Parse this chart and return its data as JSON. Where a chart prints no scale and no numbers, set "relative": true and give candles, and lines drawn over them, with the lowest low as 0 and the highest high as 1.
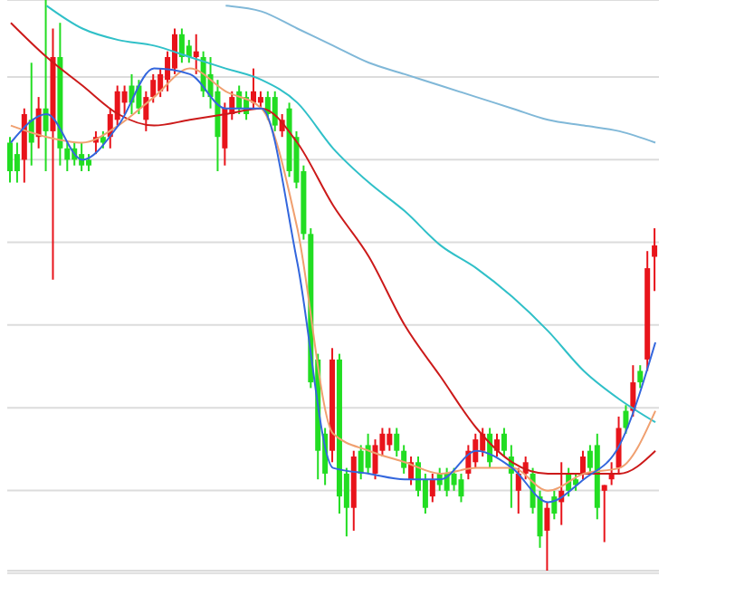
{
  "chart_data": {
    "type": "candlestick",
    "relative": true,
    "grid": "y",
    "categories": [
      null,
      null,
      null,
      null,
      null,
      null,
      null,
      null,
      null,
      null,
      null,
      null,
      null,
      null,
      null,
      null,
      null,
      null,
      null,
      null,
      null,
      null,
      null,
      null,
      null,
      null,
      null,
      null,
      null,
      null,
      null,
      null,
      null,
      null,
      null,
      null,
      null,
      null,
      null,
      null,
      null,
      null,
      null,
      null,
      null,
      null,
      null,
      null,
      null,
      null,
      null,
      null,
      null,
      null,
      null,
      null,
      null,
      null,
      null,
      null,
      null,
      null,
      null,
      null,
      null,
      null,
      null,
      null,
      null,
      null,
      null,
      null,
      null,
      null,
      null,
      null,
      null,
      null,
      null,
      null,
      null,
      null,
      null,
      null,
      null,
      null,
      null,
      null,
      null,
      null,
      null
    ],
    "ohlc": [
      [
        0.75,
        0.76,
        0.68,
        0.7
      ],
      [
        0.73,
        0.75,
        0.68,
        0.7
      ],
      [
        0.72,
        0.81,
        0.68,
        0.8
      ],
      [
        0.79,
        0.89,
        0.71,
        0.75
      ],
      [
        0.76,
        0.83,
        0.74,
        0.81
      ],
      [
        0.81,
        1,
        0.7,
        0.77
      ],
      [
        0.77,
        0.95,
        0.51,
        0.9
      ],
      [
        0.9,
        0.96,
        0.71,
        0.74
      ],
      [
        0.74,
        0.75,
        0.7,
        0.72
      ],
      [
        0.74,
        0.75,
        0.71,
        0.72
      ],
      [
        0.73,
        0.75,
        0.7,
        0.71
      ],
      [
        0.72,
        0.73,
        0.7,
        0.71
      ],
      [
        0.75,
        0.77,
        0.73,
        0.76
      ],
      [
        0.76,
        0.77,
        0.74,
        0.75
      ],
      [
        0.76,
        0.81,
        0.74,
        0.8
      ],
      [
        0.79,
        0.85,
        0.78,
        0.84
      ],
      [
        0.82,
        0.85,
        0.8,
        0.84
      ],
      [
        0.85,
        0.87,
        0.8,
        0.82
      ],
      [
        0.85,
        0.86,
        0.8,
        0.81
      ],
      [
        0.79,
        0.84,
        0.77,
        0.83
      ],
      [
        0.83,
        0.87,
        0.82,
        0.86
      ],
      [
        0.84,
        0.88,
        0.83,
        0.87
      ],
      [
        0.86,
        0.91,
        0.84,
        0.9
      ],
      [
        0.88,
        0.95,
        0.87,
        0.94
      ],
      [
        0.94,
        0.95,
        0.89,
        0.9
      ],
      [
        0.92,
        0.93,
        0.89,
        0.9
      ],
      [
        0.9,
        0.94,
        0.87,
        0.91
      ],
      [
        0.9,
        0.91,
        0.83,
        0.84
      ],
      [
        0.87,
        0.9,
        0.81,
        0.83
      ],
      [
        0.84,
        0.86,
        0.7,
        0.76
      ],
      [
        0.74,
        0.82,
        0.71,
        0.81
      ],
      [
        0.8,
        0.84,
        0.79,
        0.83
      ],
      [
        0.84,
        0.85,
        0.8,
        0.81
      ],
      [
        0.83,
        0.84,
        0.79,
        0.8
      ],
      [
        0.82,
        0.88,
        0.81,
        0.84
      ],
      [
        0.82,
        0.84,
        0.81,
        0.83
      ],
      [
        0.83,
        0.84,
        0.79,
        0.8
      ],
      [
        0.83,
        0.84,
        0.77,
        0.78
      ],
      [
        0.77,
        0.8,
        0.76,
        0.79
      ],
      [
        0.81,
        0.82,
        0.69,
        0.7
      ],
      [
        0.76,
        0.77,
        0.67,
        0.68
      ],
      [
        0.7,
        0.71,
        0.58,
        0.59
      ],
      [
        0.59,
        0.6,
        0.32,
        0.33
      ],
      [
        0.37,
        0.38,
        0.16,
        0.21
      ],
      [
        0.24,
        0.25,
        0.15,
        0.17
      ],
      [
        0.21,
        0.39,
        0.19,
        0.37
      ],
      [
        0.37,
        0.38,
        0.1,
        0.13
      ],
      [
        0.17,
        0.18,
        0.06,
        0.11
      ],
      [
        0.11,
        0.21,
        0.07,
        0.2
      ],
      [
        0.21,
        0.22,
        0.16,
        0.17
      ],
      [
        0.22,
        0.24,
        0.17,
        0.18
      ],
      [
        0.17,
        0.23,
        0.16,
        0.22
      ],
      [
        0.21,
        0.25,
        0.2,
        0.24
      ],
      [
        0.22,
        0.25,
        0.21,
        0.24
      ],
      [
        0.24,
        0.25,
        0.2,
        0.21
      ],
      [
        0.21,
        0.22,
        0.17,
        0.18
      ],
      [
        0.16,
        0.2,
        0.15,
        0.19
      ],
      [
        0.19,
        0.2,
        0.13,
        0.14
      ],
      [
        0.16,
        0.17,
        0.1,
        0.11
      ],
      [
        0.13,
        0.17,
        0.12,
        0.16
      ],
      [
        0.17,
        0.18,
        0.14,
        0.15
      ],
      [
        0.17,
        0.18,
        0.13,
        0.14
      ],
      [
        0.17,
        0.18,
        0.14,
        0.15
      ],
      [
        0.16,
        0.17,
        0.12,
        0.13
      ],
      [
        0.17,
        0.22,
        0.16,
        0.21
      ],
      [
        0.19,
        0.24,
        0.18,
        0.23
      ],
      [
        0.21,
        0.25,
        0.2,
        0.24
      ],
      [
        0.24,
        0.25,
        0.18,
        0.19
      ],
      [
        0.21,
        0.24,
        0.2,
        0.23
      ],
      [
        0.24,
        0.25,
        0.2,
        0.21
      ],
      [
        0.2,
        0.22,
        0.11,
        0.17
      ],
      [
        0.14,
        0.18,
        0.1,
        0.17
      ],
      [
        0.17,
        0.2,
        0.16,
        0.19
      ],
      [
        0.17,
        0.18,
        0.1,
        0.11
      ],
      [
        0.13,
        0.14,
        0.04,
        0.06
      ],
      [
        0.07,
        0.12,
        0,
        0.11
      ],
      [
        0.13,
        0.14,
        0.09,
        0.1
      ],
      [
        0.12,
        0.19,
        0.08,
        0.14
      ],
      [
        0.17,
        0.18,
        0.13,
        0.14
      ],
      [
        0.16,
        0.17,
        0.14,
        0.15
      ],
      [
        0.17,
        0.21,
        0.16,
        0.2
      ],
      [
        0.21,
        0.22,
        0.17,
        0.18
      ],
      [
        0.22,
        0.24,
        0.09,
        0.11
      ],
      [
        0.14,
        0.15,
        0.05,
        0.15
      ],
      [
        0.16,
        0.19,
        0.15,
        0.17
      ],
      [
        0.18,
        0.27,
        0.17,
        0.25
      ],
      [
        0.28,
        0.29,
        0.24,
        0.25
      ],
      [
        0.28,
        0.36,
        0.27,
        0.33
      ],
      [
        0.35,
        0.36,
        0.32,
        0.33
      ],
      [
        0.37,
        0.56,
        0.35,
        0.53
      ],
      [
        0.55,
        0.6,
        0.49,
        0.57
      ]
    ],
    "colors": [
      "#22dd22",
      "#22dd22",
      "#e8141b",
      "#22dd22",
      "#e8141b",
      "#22dd22",
      "#e8141b",
      "#22dd22",
      "#22dd22",
      "#22dd22",
      "#22dd22",
      "#22dd22",
      "#e8141b",
      "#22dd22",
      "#e8141b",
      "#e8141b",
      "#e8141b",
      "#22dd22",
      "#22dd22",
      "#e8141b",
      "#e8141b",
      "#e8141b",
      "#e8141b",
      "#e8141b",
      "#22dd22",
      "#22dd22",
      "#e8141b",
      "#22dd22",
      "#22dd22",
      "#22dd22",
      "#e8141b",
      "#e8141b",
      "#22dd22",
      "#22dd22",
      "#e8141b",
      "#e8141b",
      "#22dd22",
      "#22dd22",
      "#e8141b",
      "#22dd22",
      "#22dd22",
      "#22dd22",
      "#22dd22",
      "#22dd22",
      "#22dd22",
      "#e8141b",
      "#22dd22",
      "#22dd22",
      "#e8141b",
      "#22dd22",
      "#22dd22",
      "#e8141b",
      "#e8141b",
      "#e8141b",
      "#22dd22",
      "#22dd22",
      "#e8141b",
      "#22dd22",
      "#22dd22",
      "#e8141b",
      "#22dd22",
      "#22dd22",
      "#22dd22",
      "#22dd22",
      "#e8141b",
      "#e8141b",
      "#e8141b",
      "#22dd22",
      "#e8141b",
      "#22dd22",
      "#22dd22",
      "#e8141b",
      "#e8141b",
      "#22dd22",
      "#22dd22",
      "#e8141b",
      "#22dd22",
      "#e8141b",
      "#22dd22",
      "#22dd22",
      "#e8141b",
      "#22dd22",
      "#22dd22",
      "#e8141b",
      "#e8141b",
      "#e8141b",
      "#22dd22",
      "#e8141b",
      "#22dd22",
      "#e8141b",
      "#e8141b"
    ],
    "series": [
      {
        "type": "line",
        "color": "#80b8d8",
        "values": [
          null,
          null,
          null,
          null,
          null,
          null,
          null,
          null,
          null,
          null,
          null,
          null,
          null,
          null,
          null,
          null,
          null,
          null,
          null,
          null,
          null,
          null,
          null,
          null,
          null,
          null,
          null,
          null,
          null,
          null,
          0.99,
          null,
          null,
          null,
          null,
          0.98,
          null,
          null,
          null,
          null,
          0.95,
          null,
          null,
          null,
          null,
          0.92,
          null,
          null,
          null,
          null,
          0.89,
          null,
          null,
          null,
          null,
          0.87,
          null,
          null,
          null,
          null,
          0.85,
          null,
          null,
          null,
          null,
          0.83,
          null,
          null,
          null,
          null,
          0.81,
          null,
          null,
          null,
          null,
          0.79,
          null,
          null,
          null,
          null,
          0.78,
          null,
          null,
          null,
          null,
          0.77,
          null,
          null,
          null,
          null,
          0.75
        ]
      },
      {
        "type": "line",
        "color": "#30c0c8",
        "values": [
          null,
          null,
          null,
          null,
          null,
          0.99,
          null,
          null,
          null,
          null,
          0.95,
          null,
          null,
          null,
          null,
          0.93,
          null,
          null,
          null,
          null,
          0.92,
          null,
          null,
          null,
          null,
          0.9,
          null,
          null,
          null,
          null,
          0.88,
          null,
          null,
          null,
          null,
          0.86,
          null,
          null,
          null,
          null,
          0.82,
          null,
          null,
          null,
          null,
          0.74,
          null,
          null,
          null,
          null,
          0.68,
          null,
          null,
          null,
          null,
          0.63,
          null,
          null,
          null,
          null,
          0.57,
          null,
          null,
          null,
          null,
          0.53,
          null,
          null,
          null,
          null,
          0.48,
          null,
          null,
          null,
          null,
          0.42,
          null,
          null,
          null,
          null,
          0.35,
          null,
          null,
          null,
          null,
          0.3,
          null,
          null,
          null,
          null,
          0.26
        ]
      },
      {
        "type": "line",
        "color": "#cc1a1a",
        "values": [
          0.96,
          null,
          null,
          null,
          null,
          0.9,
          null,
          null,
          null,
          null,
          0.85,
          null,
          null,
          null,
          null,
          0.8,
          null,
          null,
          null,
          null,
          0.78,
          null,
          null,
          null,
          null,
          0.79,
          null,
          null,
          null,
          null,
          0.8,
          null,
          null,
          null,
          null,
          0.81,
          null,
          null,
          null,
          null,
          0.75,
          null,
          null,
          null,
          null,
          0.64,
          null,
          null,
          null,
          null,
          0.55,
          null,
          null,
          null,
          null,
          0.43,
          null,
          null,
          null,
          null,
          0.34,
          null,
          null,
          null,
          null,
          0.25,
          null,
          null,
          null,
          null,
          0.19,
          null,
          null,
          null,
          null,
          0.17,
          null,
          null,
          null,
          null,
          0.17,
          null,
          null,
          null,
          null,
          0.17,
          null,
          null,
          null,
          null,
          0.21
        ]
      },
      {
        "type": "line",
        "color": "#f0a070",
        "values": [
          0.78,
          null,
          null,
          null,
          null,
          0.76,
          null,
          null,
          null,
          null,
          0.75,
          null,
          null,
          null,
          null,
          0.78,
          null,
          null,
          null,
          null,
          0.83,
          null,
          null,
          null,
          null,
          0.88,
          null,
          null,
          null,
          null,
          0.84,
          null,
          null,
          null,
          null,
          0.81,
          null,
          null,
          null,
          null,
          0.6,
          null,
          null,
          null,
          null,
          0.24,
          null,
          null,
          null,
          null,
          0.21,
          null,
          null,
          null,
          null,
          0.19,
          null,
          null,
          null,
          null,
          0.17,
          null,
          null,
          null,
          null,
          0.18,
          null,
          null,
          null,
          null,
          0.18,
          null,
          null,
          null,
          null,
          0.14,
          null,
          null,
          null,
          null,
          0.17,
          null,
          null,
          null,
          null,
          0.18,
          null,
          null,
          null,
          null,
          0.28
        ]
      },
      {
        "type": "line",
        "color": "#3366dd",
        "values": [
          0.75,
          null,
          null,
          null,
          null,
          0.8,
          null,
          null,
          null,
          null,
          0.72,
          null,
          null,
          null,
          null,
          0.78,
          null,
          null,
          null,
          null,
          0.88,
          null,
          null,
          null,
          null,
          0.87,
          null,
          null,
          null,
          null,
          0.81,
          null,
          null,
          null,
          null,
          0.81,
          null,
          null,
          null,
          null,
          0.54,
          null,
          null,
          null,
          null,
          0.18,
          null,
          null,
          null,
          null,
          0.17,
          null,
          null,
          null,
          null,
          0.16,
          null,
          null,
          null,
          null,
          0.16,
          null,
          null,
          null,
          null,
          0.21,
          null,
          null,
          null,
          null,
          0.18,
          null,
          null,
          null,
          null,
          0.12,
          null,
          null,
          null,
          null,
          0.16,
          null,
          null,
          null,
          null,
          0.22,
          null,
          null,
          null,
          null,
          0.4
        ]
      }
    ]
  }
}
